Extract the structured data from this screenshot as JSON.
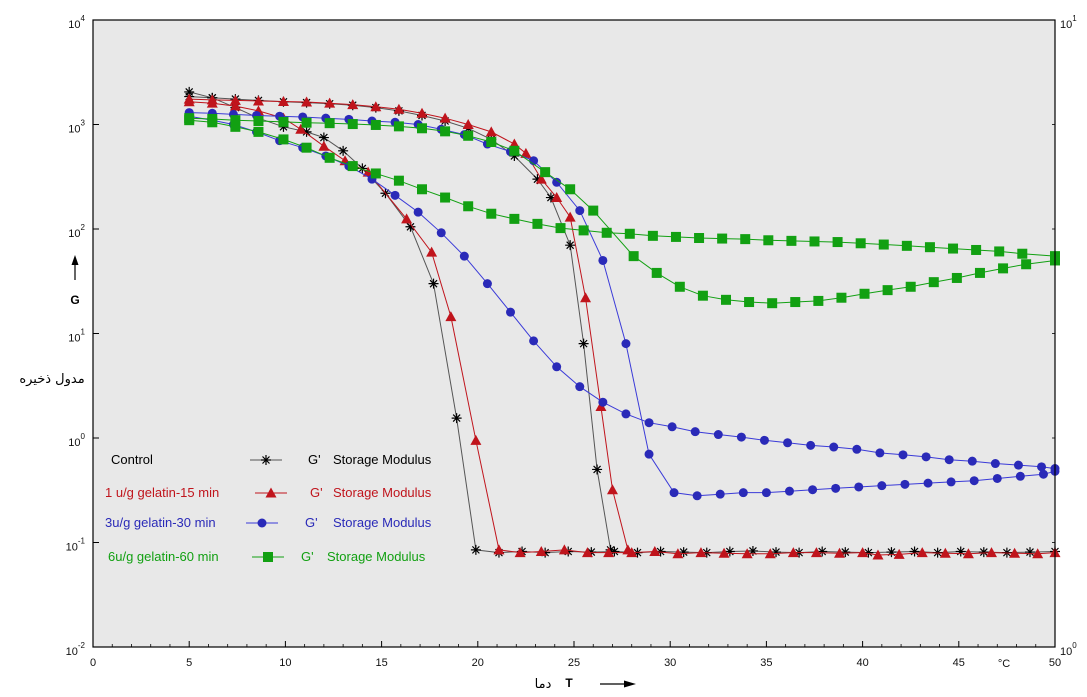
{
  "chart_data": {
    "type": "line",
    "title": "",
    "xlabel": "T",
    "xlabel_fa": "دما",
    "x_unit": "°C",
    "ylabel": "G",
    "ylabel_fa": "مدول ذخیره",
    "xlim": [
      0,
      50
    ],
    "ylim": [
      0.01,
      10000
    ],
    "yscale": "log",
    "right_axis_range": [
      1,
      10
    ],
    "x_ticks": [
      "0",
      "5",
      "10",
      "15",
      "20",
      "25",
      "30",
      "35",
      "40",
      "45",
      "50"
    ],
    "y_ticks": [
      {
        "base": "10",
        "exp": "-2"
      },
      {
        "base": "10",
        "exp": "-1"
      },
      {
        "base": "10",
        "exp": "0"
      },
      {
        "base": "10",
        "exp": "1"
      },
      {
        "base": "10",
        "exp": "2"
      },
      {
        "base": "10",
        "exp": "3"
      },
      {
        "base": "10",
        "exp": "4"
      }
    ],
    "right_ticks": [
      {
        "base": "10",
        "exp": "0"
      },
      {
        "base": "10",
        "exp": "1"
      }
    ],
    "legend_position": "bottom-left",
    "series": [
      {
        "name": "Control",
        "quantity": "G'",
        "label": "Storage Modulus",
        "color": "#000000",
        "line_color": "#555555",
        "marker": "asterisk",
        "curves": [
          {
            "x": [
              5,
              6.2,
              7.4,
              8.6,
              9.9,
              11.1,
              12.3,
              13.5,
              14.7,
              15.9,
              17.1,
              18.3,
              19.5,
              20.7,
              21.9,
              23.1,
              23.8,
              24.8,
              25.5,
              26.2,
              26.9
            ],
            "y": [
              1850,
              1800,
              1750,
              1700,
              1650,
              1620,
              1580,
              1530,
              1450,
              1350,
              1220,
              1080,
              920,
              720,
              500,
              300,
              200,
              70,
              8,
              0.5,
              0.085
            ]
          },
          {
            "x": [
              5,
              6.2,
              7.4,
              8.6,
              9.9,
              11.1,
              12,
              13,
              14,
              15.2,
              16.5,
              17.7,
              18.9,
              19.9,
              21.1,
              22.3,
              23.5,
              24.7,
              25.9,
              27.1,
              28.3,
              29.5,
              30.7,
              31.9,
              33.1,
              34.3,
              35.5,
              36.7,
              37.9,
              39.1,
              40.3,
              41.5,
              42.7,
              43.9,
              45.1,
              46.3,
              47.5,
              48.7,
              50
            ],
            "y": [
              2050,
              1800,
              1450,
              1150,
              950,
              850,
              750,
              560,
              380,
              220,
              105,
              30,
              1.55,
              0.085,
              0.08,
              0.082,
              0.08,
              0.082,
              0.081,
              0.082,
              0.08,
              0.082,
              0.081,
              0.08,
              0.082,
              0.083,
              0.081,
              0.08,
              0.082,
              0.081,
              0.08,
              0.081,
              0.082,
              0.08,
              0.082,
              0.081,
              0.08,
              0.081,
              0.082
            ]
          }
        ]
      },
      {
        "name": "1 u/g gelatin-15 min",
        "quantity": "G'",
        "label": "Storage Modulus",
        "color": "#c0141c",
        "line_color": "#c0141c",
        "marker": "triangle",
        "curves": [
          {
            "x": [
              5,
              6.2,
              7.4,
              8.6,
              9.9,
              11.1,
              12.3,
              13.5,
              14.7,
              15.9,
              17.1,
              18.3,
              19.5,
              20.7,
              21.9,
              22.5,
              23.3,
              24.1,
              24.8,
              25.6,
              26.4,
              27,
              27.8
            ],
            "y": [
              1750,
              1720,
              1700,
              1680,
              1660,
              1640,
              1600,
              1550,
              1480,
              1400,
              1280,
              1150,
              1000,
              850,
              650,
              530,
              300,
              200,
              130,
              22,
              2,
              0.32,
              0.085
            ]
          },
          {
            "x": [
              5,
              6.2,
              7.4,
              8.6,
              9.9,
              10.8,
              12,
              13.1,
              14.3,
              16.3,
              17.6,
              18.6,
              19.9,
              21.1,
              22.2,
              23.3,
              24.5,
              25.7,
              26.8,
              28,
              29.2,
              30.4,
              31.6,
              32.8,
              34,
              35.2,
              36.4,
              37.6,
              38.8,
              40,
              40.8,
              41.9,
              43.1,
              44.3,
              45.5,
              46.7,
              47.9,
              49.1,
              50
            ],
            "y": [
              1650,
              1600,
              1500,
              1350,
              1150,
              900,
              620,
              450,
              350,
              125,
              60,
              14.5,
              0.95,
              0.085,
              0.08,
              0.082,
              0.085,
              0.08,
              0.08,
              0.08,
              0.082,
              0.078,
              0.08,
              0.079,
              0.078,
              0.078,
              0.08,
              0.08,
              0.079,
              0.08,
              0.076,
              0.077,
              0.08,
              0.079,
              0.078,
              0.08,
              0.079,
              0.078,
              0.08
            ]
          }
        ]
      },
      {
        "name": "3u/g gelatin-30 min",
        "quantity": "G'",
        "label": "Storage Modulus",
        "color": "#2a2ab8",
        "line_color": "#3a3ad8",
        "marker": "circle",
        "curves": [
          {
            "x": [
              5,
              6.2,
              7.3,
              8.5,
              9.7,
              10.9,
              12.1,
              13.3,
              14.5,
              15.7,
              16.9,
              18.1,
              19.3,
              20.5,
              21.7,
              22.9,
              24.1,
              25.3,
              26.5,
              27.7,
              28.9,
              30.2,
              31.4,
              32.6,
              33.8,
              35,
              36.2,
              37.4,
              38.6,
              39.8,
              41,
              42.2,
              43.4,
              44.6,
              45.8,
              47,
              48.2,
              49.4,
              50
            ],
            "y": [
              1300,
              1280,
              1250,
              1220,
              1200,
              1180,
              1150,
              1120,
              1080,
              1050,
              1000,
              900,
              800,
              650,
              550,
              450,
              280,
              150,
              50,
              8,
              0.7,
              0.3,
              0.28,
              0.29,
              0.3,
              0.3,
              0.31,
              0.32,
              0.33,
              0.34,
              0.35,
              0.36,
              0.37,
              0.38,
              0.39,
              0.41,
              0.43,
              0.45,
              0.48
            ]
          },
          {
            "x": [
              5,
              6.2,
              7.3,
              8.5,
              9.7,
              10.9,
              12.1,
              13.3,
              14.5,
              15.7,
              16.9,
              18.1,
              19.3,
              20.5,
              21.7,
              22.9,
              24.1,
              25.3,
              26.5,
              27.7,
              28.9,
              30.1,
              31.3,
              32.5,
              33.7,
              34.9,
              36.1,
              37.3,
              38.5,
              39.7,
              40.9,
              42.1,
              43.3,
              44.5,
              45.7,
              46.9,
              48.1,
              49.3,
              50
            ],
            "y": [
              1200,
              1100,
              1000,
              850,
              700,
              600,
              500,
              400,
              300,
              210,
              145,
              92,
              55,
              30,
              16,
              8.5,
              4.8,
              3.1,
              2.2,
              1.7,
              1.4,
              1.28,
              1.15,
              1.08,
              1.02,
              0.95,
              0.9,
              0.85,
              0.82,
              0.78,
              0.72,
              0.69,
              0.66,
              0.62,
              0.6,
              0.57,
              0.55,
              0.53,
              0.51
            ]
          }
        ]
      },
      {
        "name": "6u/g gelatin-60 min",
        "quantity": "G'",
        "label": "Storage Modulus",
        "color": "#12a012",
        "line_color": "#12a012",
        "marker": "square",
        "curves": [
          {
            "x": [
              5,
              6.2,
              7.4,
              8.6,
              9.9,
              11.1,
              12.3,
              13.5,
              14.7,
              15.9,
              17.1,
              18.3,
              19.5,
              20.7,
              21.9,
              23.5,
              24.8,
              26,
              28.1,
              29.3,
              30.5,
              31.7,
              32.9,
              34.1,
              35.3,
              36.5,
              37.7,
              38.9,
              40.1,
              41.3,
              42.5,
              43.7,
              44.9,
              46.1,
              47.3,
              48.5,
              50
            ],
            "y": [
              1150,
              1130,
              1100,
              1080,
              1060,
              1040,
              1030,
              1010,
              990,
              960,
              920,
              860,
              780,
              680,
              560,
              350,
              240,
              150,
              55,
              38,
              28,
              23,
              21,
              20,
              19.5,
              20,
              20.5,
              22,
              24,
              26,
              28,
              31,
              34,
              38,
              42,
              46,
              50
            ]
          },
          {
            "x": [
              5,
              6.2,
              7.4,
              8.6,
              9.9,
              11.1,
              12.3,
              13.5,
              14.7,
              15.9,
              17.1,
              18.3,
              19.5,
              20.7,
              21.9,
              23.1,
              24.3,
              25.5,
              26.7,
              27.9,
              29.1,
              30.3,
              31.5,
              32.7,
              33.9,
              35.1,
              36.3,
              37.5,
              38.7,
              39.9,
              41.1,
              42.3,
              43.5,
              44.7,
              45.9,
              47.1,
              48.3,
              50
            ],
            "y": [
              1100,
              1050,
              950,
              850,
              720,
              600,
              480,
              400,
              340,
              290,
              240,
              200,
              165,
              140,
              125,
              112,
              102,
              97,
              92,
              90,
              86,
              84,
              82,
              81,
              80,
              78,
              77,
              76,
              75,
              73,
              71,
              69,
              67,
              65,
              63,
              61,
              58,
              55
            ]
          }
        ]
      }
    ]
  }
}
